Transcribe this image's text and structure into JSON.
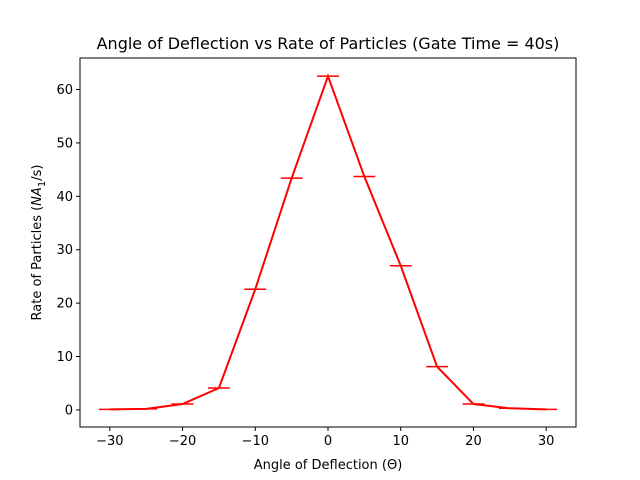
{
  "chart_data": {
    "type": "line",
    "title": "Angle of Deflection vs Rate of Particles (Gate Time = 40s)",
    "xlabel": "Angle of Deflection (Θ)",
    "ylabel_text": "Rate of Particles (",
    "ylabel_math_N": "N",
    "ylabel_math_A": "A",
    "ylabel_math_sub": "1",
    "ylabel_math_rest": "/s)",
    "xlim": [
      -34.1,
      34.1
    ],
    "ylim": [
      -3.2,
      65.9
    ],
    "x_ticks": [
      -30,
      -20,
      -10,
      0,
      10,
      20,
      30
    ],
    "x_tick_labels": [
      "−30",
      "−20",
      "−10",
      "0",
      "10",
      "20",
      "30"
    ],
    "y_ticks": [
      0,
      10,
      20,
      30,
      40,
      50,
      60
    ],
    "y_tick_labels": [
      "0",
      "10",
      "20",
      "30",
      "40",
      "50",
      "60"
    ],
    "grid": false,
    "color": "#ff0000",
    "series": [
      {
        "x": [
          -30,
          -25,
          -20,
          -15,
          -10,
          -5,
          0,
          5,
          10,
          15,
          20,
          25,
          30
        ],
        "y": [
          0.1,
          0.2,
          1.1,
          4.1,
          22.6,
          43.4,
          62.5,
          43.7,
          27.0,
          8.1,
          1.1,
          0.3,
          0.1
        ],
        "xerr": 1.5
      }
    ]
  }
}
